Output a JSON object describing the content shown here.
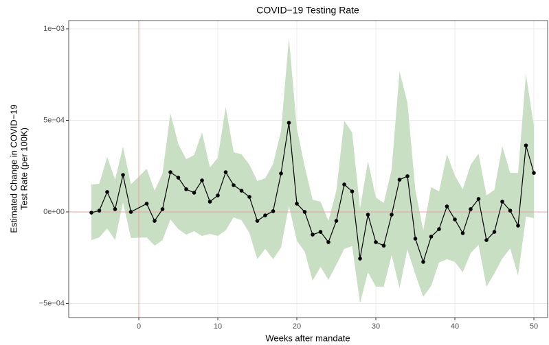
{
  "chart_data": {
    "type": "event-study",
    "title": "COVID−19 Testing Rate",
    "xlabel": "Weeks after mandate",
    "ylabel": [
      "Estimated Change in COVID−19",
      "Test Rate (per 100K)"
    ],
    "x": [
      -6,
      -5,
      -4,
      -3,
      -2,
      -1,
      1,
      2,
      3,
      4,
      5,
      6,
      7,
      8,
      9,
      10,
      11,
      12,
      13,
      14,
      15,
      16,
      17,
      18,
      19,
      20,
      21,
      22,
      23,
      24,
      25,
      26,
      27,
      28,
      29,
      30,
      31,
      32,
      33,
      34,
      35,
      36,
      37,
      38,
      39,
      40,
      41,
      42,
      43,
      44,
      45,
      46,
      47,
      48,
      49,
      50
    ],
    "values": [
      -4e-06,
      7e-06,
      0.000109,
      1.5e-05,
      0.000202,
      0,
      4.5e-05,
      -4.9e-05,
      1.5e-05,
      0.000217,
      0.000187,
      0.000124,
      0.000105,
      0.000172,
      5.6e-05,
      9e-05,
      0.000217,
      0.000146,
      0.000116,
      8.2e-05,
      -4.9e-05,
      -1.9e-05,
      4e-06,
      0.00021,
      0.000487,
      4.5e-05,
      0,
      -0.000124,
      -0.000109,
      -0.000165,
      -4.9e-05,
      0.00015,
      0.000112,
      -0.000255,
      -1.5e-05,
      -0.000165,
      -0.000184,
      -1.5e-05,
      0.000176,
      0.000195,
      -0.000146,
      -0.000273,
      -0.000135,
      -9.4e-05,
      3e-05,
      -4.1e-05,
      -0.000116,
      1.5e-05,
      7.1e-05,
      -0.000154,
      -0.000109,
      5.6e-05,
      7e-06,
      -7.5e-05,
      0.000363,
      0.000213
    ],
    "upper": [
      0.00015,
      0.000154,
      0.0003,
      0.000176,
      0.000356,
      0.00015,
      0.000236,
      0.000116,
      0.00021,
      0.000539,
      0.000371,
      0.000288,
      0.000311,
      0.000434,
      0.000243,
      0.000296,
      0.000573,
      0.000326,
      0.000315,
      0.000258,
      0.000169,
      0.000184,
      0.000262,
      0.000442,
      0.000951,
      0.000457,
      0.000247,
      6.7e-05,
      5.6e-05,
      -4.9e-05,
      0.000116,
      0.000498,
      0.000434,
      1.9e-05,
      0.000277,
      7.9e-05,
      4.9e-05,
      0.000232,
      0.000768,
      0.000596,
      0.00012,
      -0.000101,
      0.000135,
      0.000112,
      0.000315,
      0.000199,
      0.000124,
      0.000258,
      0.000318,
      9e-05,
      0.00012,
      0.00036,
      0.000213,
      0.000213,
      0.000753,
      0.000468
    ],
    "lower": [
      -0.000154,
      -0.000139,
      -9e-05,
      -0.000154,
      5.2e-05,
      -0.000142,
      -0.000139,
      -0.000184,
      -0.000154,
      -4.1e-05,
      -9.4e-05,
      -0.000124,
      -0.000105,
      -0.000131,
      -0.00012,
      -0.000131,
      -0.000101,
      -3e-05,
      -4.5e-05,
      -0.000116,
      -0.000258,
      -0.000202,
      -0.000258,
      -0.000195,
      3.4e-05,
      -0.000157,
      -0.000217,
      -0.000375,
      -0.0003,
      -0.000371,
      -0.000288,
      -0.000202,
      -0.000187,
      -0.000498,
      -0.00033,
      -0.000408,
      -0.000408,
      -0.000236,
      -0.000416,
      -0.000206,
      -0.000341,
      -0.000464,
      -0.000404,
      -0.000277,
      -0.000258,
      -0.000273,
      -0.00033,
      -0.000225,
      -0.00018,
      -0.000408,
      -0.000337,
      -0.000255,
      -0.000199,
      -0.000348,
      -2.6e-05,
      -3.4e-05
    ],
    "color": "#000000",
    "band_color": "#c9dfc3",
    "ref_color": "#e8a3a3",
    "vline": 0,
    "hline": 0,
    "xlim": [
      -8.87,
      51.74
    ],
    "xticks": [
      0,
      10,
      20,
      30,
      40,
      50
    ],
    "ylim": [
      -0.000577,
      0.001045
    ],
    "yticks": [
      {
        "value": -0.0005,
        "label": "−5e−04"
      },
      {
        "value": 0,
        "label": "0e+00"
      },
      {
        "value": 0.0005,
        "label": "5e−04"
      },
      {
        "value": 0.001,
        "label": "1e−03"
      }
    ],
    "grid": true
  }
}
